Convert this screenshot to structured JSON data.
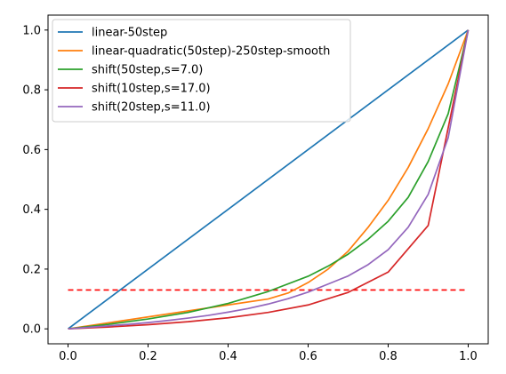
{
  "chart_data": {
    "type": "line",
    "title": "",
    "xlabel": "",
    "ylabel": "",
    "xlim": [
      -0.05,
      1.05
    ],
    "ylim": [
      -0.05,
      1.05
    ],
    "xticks": [
      0.0,
      0.2,
      0.4,
      0.6,
      0.8,
      1.0
    ],
    "yticks": [
      0.0,
      0.2,
      0.4,
      0.6,
      0.8,
      1.0
    ],
    "xtick_labels": [
      "0.0",
      "0.2",
      "0.4",
      "0.6",
      "0.8",
      "1.0"
    ],
    "ytick_labels": [
      "0.0",
      "0.2",
      "0.4",
      "0.6",
      "0.8",
      "1.0"
    ],
    "grid": false,
    "legend_position": "top-left",
    "series": [
      {
        "name": "linear-50step",
        "color": "#1f77b4",
        "style": "solid",
        "x": [
          0.0,
          1.0
        ],
        "y": [
          0.0,
          1.0
        ]
      },
      {
        "name": "linear-quadratic(50step)-250step-smooth",
        "color": "#ff7f0e",
        "style": "solid",
        "x": [
          0.0,
          0.1,
          0.2,
          0.3,
          0.4,
          0.5,
          0.55,
          0.6,
          0.65,
          0.7,
          0.75,
          0.8,
          0.85,
          0.9,
          0.95,
          1.0
        ],
        "y": [
          0.0,
          0.02,
          0.04,
          0.06,
          0.08,
          0.1,
          0.12,
          0.155,
          0.2,
          0.26,
          0.34,
          0.43,
          0.54,
          0.67,
          0.82,
          1.0
        ]
      },
      {
        "name": "shift(50step,s=7.0)",
        "color": "#2ca02c",
        "style": "solid",
        "x": [
          0.0,
          0.1,
          0.2,
          0.3,
          0.4,
          0.5,
          0.6,
          0.65,
          0.7,
          0.75,
          0.8,
          0.85,
          0.9,
          0.95,
          1.0
        ],
        "y": [
          0.0,
          0.015,
          0.033,
          0.055,
          0.085,
          0.125,
          0.176,
          0.21,
          0.25,
          0.3,
          0.36,
          0.44,
          0.56,
          0.72,
          1.0
        ]
      },
      {
        "name": "shift(10step,s=17.0)",
        "color": "#d62728",
        "style": "solid",
        "x": [
          0.0,
          0.1,
          0.2,
          0.3,
          0.4,
          0.5,
          0.6,
          0.7,
          0.8,
          0.9,
          1.0
        ],
        "y": [
          0.0,
          0.006,
          0.014,
          0.024,
          0.037,
          0.055,
          0.08,
          0.122,
          0.19,
          0.346,
          1.0
        ]
      },
      {
        "name": "shift(20step,s=11.0)",
        "color": "#9467bd",
        "style": "solid",
        "x": [
          0.0,
          0.05,
          0.1,
          0.15,
          0.2,
          0.25,
          0.3,
          0.35,
          0.4,
          0.45,
          0.5,
          0.55,
          0.6,
          0.65,
          0.7,
          0.75,
          0.8,
          0.85,
          0.9,
          0.95,
          1.0
        ],
        "y": [
          0.0,
          0.005,
          0.01,
          0.015,
          0.021,
          0.028,
          0.036,
          0.045,
          0.056,
          0.068,
          0.083,
          0.101,
          0.123,
          0.15,
          0.177,
          0.215,
          0.265,
          0.34,
          0.45,
          0.64,
          1.0
        ]
      }
    ],
    "reference_lines": [
      {
        "color": "#ff0000",
        "style": "dashed",
        "x": [
          0.0,
          1.0
        ],
        "y": [
          0.13,
          0.13
        ]
      }
    ]
  }
}
